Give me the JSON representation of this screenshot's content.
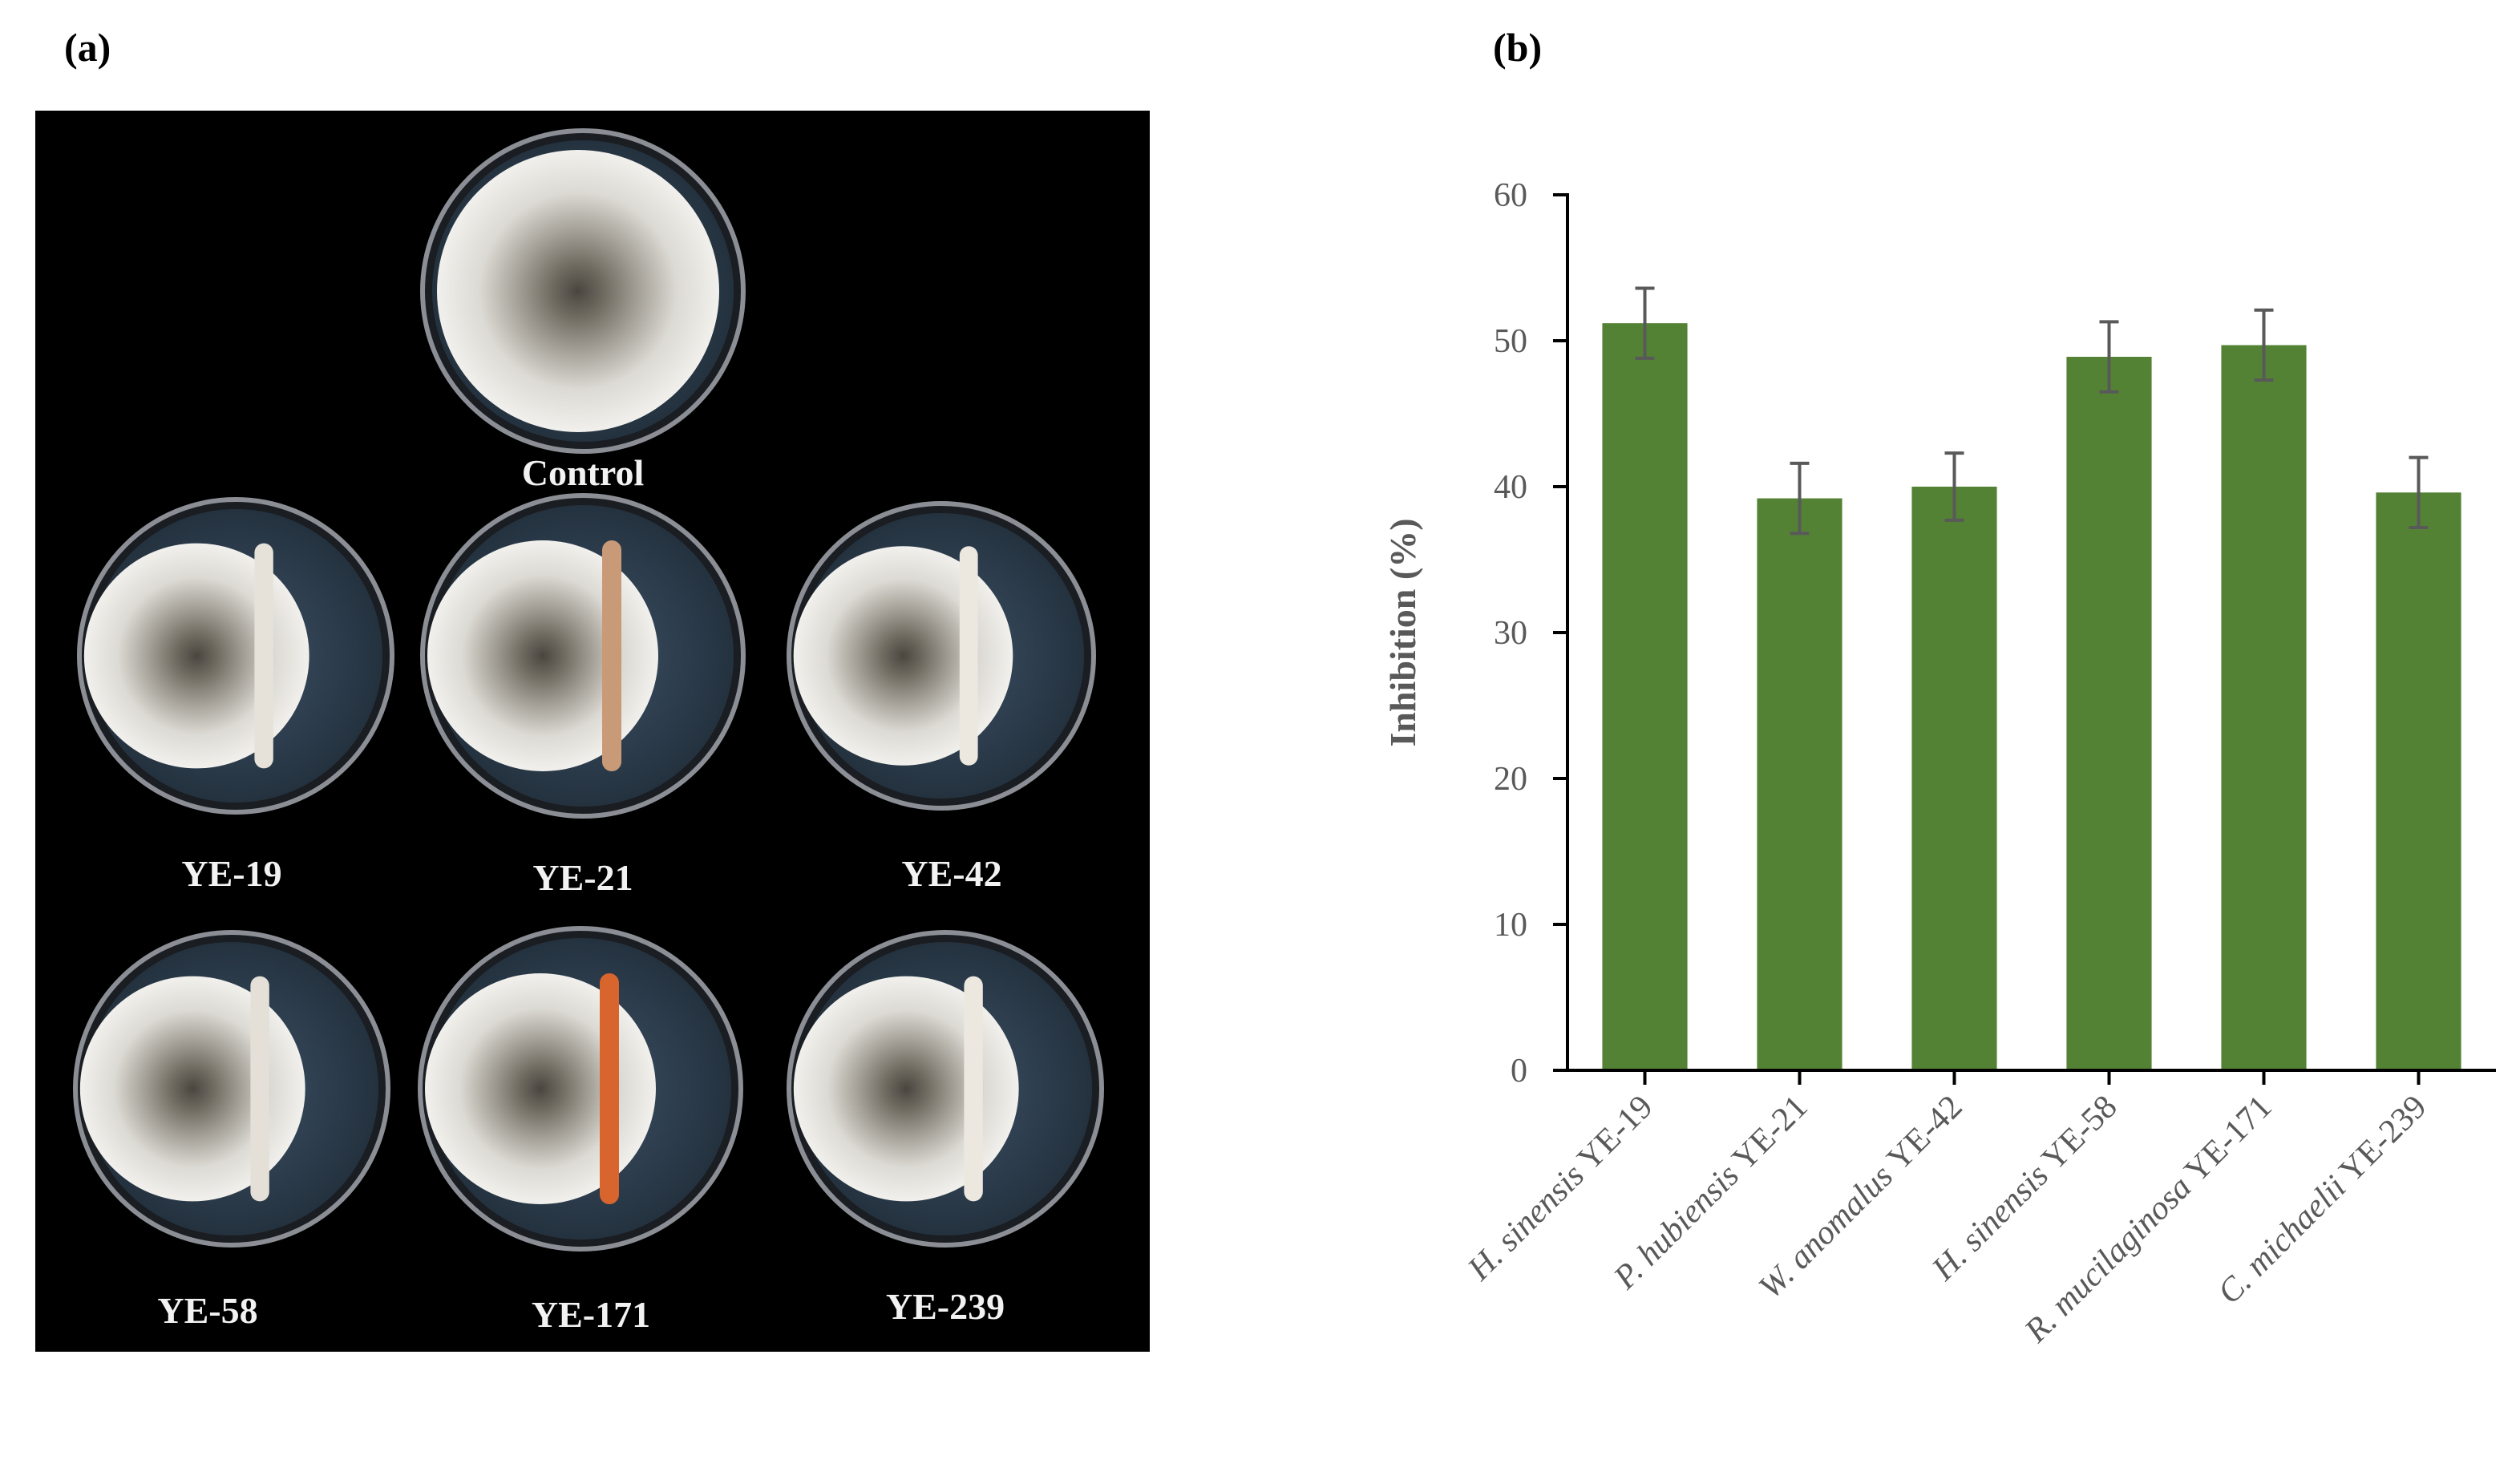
{
  "panel_labels": {
    "a": "(a)",
    "b": "(b)"
  },
  "photo_panel": {
    "dishes": [
      {
        "label": "Control",
        "has_streak": false,
        "streak_color": ""
      },
      {
        "label": "YE-19",
        "has_streak": true,
        "streak_color": "#e6e2da"
      },
      {
        "label": "YE-21",
        "has_streak": true,
        "streak_color": "#c99a78"
      },
      {
        "label": "YE-42",
        "has_streak": true,
        "streak_color": "#ece8e0"
      },
      {
        "label": "YE-58",
        "has_streak": true,
        "streak_color": "#e4e0d8"
      },
      {
        "label": "YE-171",
        "has_streak": true,
        "streak_color": "#d9652e"
      },
      {
        "label": "YE-239",
        "has_streak": true,
        "streak_color": "#ece8e0"
      }
    ]
  },
  "chart_data": {
    "type": "bar",
    "title": "",
    "xlabel": "",
    "ylabel": "Inhibition (%)",
    "ylim": [
      0,
      60
    ],
    "yticks": [
      0,
      10,
      20,
      30,
      40,
      50,
      60
    ],
    "categories": [
      "H. sinensis YE-19",
      "P. hubiensis YE-21",
      "W. anomalus  YE-42",
      "H. sinensis YE-58",
      "R. mucilaginosa YE-171",
      "C. michaelii YE-239"
    ],
    "values": [
      51.2,
      39.2,
      40.0,
      48.9,
      49.7,
      39.6
    ],
    "errors": [
      2.4,
      2.4,
      2.3,
      2.4,
      2.4,
      2.4
    ],
    "bar_color": "#548235",
    "error_color": "#595959",
    "grid": false,
    "legend": "none"
  }
}
